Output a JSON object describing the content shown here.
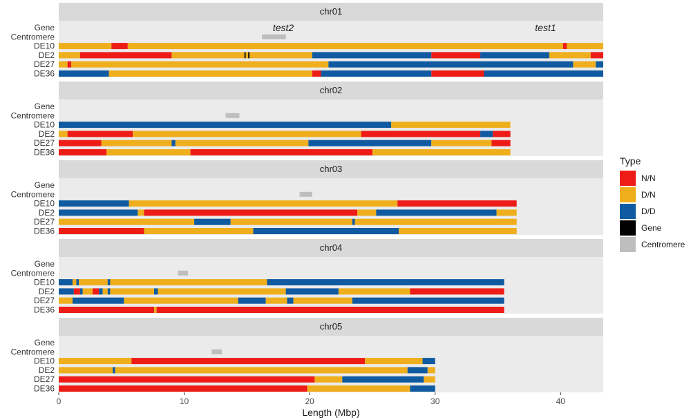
{
  "chart_data": {
    "type": "bar",
    "subtype": "horizontal-segment-tracks",
    "xlabel": "Length (Mbp)",
    "ylabel": "",
    "xlim": [
      0,
      43.4
    ],
    "xticks": [
      0,
      10,
      20,
      30,
      40
    ],
    "rows": [
      "Gene",
      "Centromere",
      "DE10",
      "DE2",
      "DE27",
      "DE36"
    ],
    "legend": {
      "title": "Type",
      "position": "right",
      "items": [
        {
          "label": "N/N",
          "color": "#ee1c17"
        },
        {
          "label": "D/N",
          "color": "#efae1c"
        },
        {
          "label": "D/D",
          "color": "#0f5aa0"
        },
        {
          "label": "Gene",
          "color": "#000000"
        },
        {
          "label": "Centromere",
          "color": "#bebebe"
        }
      ]
    },
    "type_colors": {
      "N/N": "#ee1c17",
      "D/N": "#efae1c",
      "D/D": "#0f5aa0",
      "Gene": "#000000",
      "Centromere": "#bebebe"
    },
    "panels": [
      {
        "name": "chr01",
        "length": 43.4,
        "centromere": [
          16.2,
          18.1
        ],
        "genes": [
          {
            "label": "test2",
            "pos": 17.9
          },
          {
            "label": "test1",
            "pos": 38.8
          }
        ],
        "tracks": {
          "DE10": [
            [
              0,
              4.2,
              "D/N"
            ],
            [
              4.2,
              5.5,
              "N/N"
            ],
            [
              5.5,
              40.2,
              "D/N"
            ],
            [
              40.2,
              40.5,
              "N/N"
            ],
            [
              40.5,
              43.4,
              "D/N"
            ]
          ],
          "DE2": [
            [
              0,
              1.7,
              "D/N"
            ],
            [
              1.7,
              9.0,
              "N/N"
            ],
            [
              9.0,
              14.8,
              "D/N"
            ],
            [
              14.8,
              14.9,
              "Gene"
            ],
            [
              14.9,
              15.1,
              "D/N"
            ],
            [
              15.1,
              15.2,
              "Gene"
            ],
            [
              15.2,
              20.2,
              "D/N"
            ],
            [
              20.2,
              29.7,
              "D/D"
            ],
            [
              29.7,
              33.6,
              "N/N"
            ],
            [
              33.6,
              39.1,
              "D/D"
            ],
            [
              39.1,
              42.4,
              "D/N"
            ],
            [
              42.4,
              43.4,
              "N/N"
            ]
          ],
          "DE27": [
            [
              0,
              0.7,
              "D/N"
            ],
            [
              0.7,
              1.0,
              "N/N"
            ],
            [
              1.0,
              21.5,
              "D/N"
            ],
            [
              21.5,
              41.0,
              "D/D"
            ],
            [
              41.0,
              42.8,
              "D/N"
            ],
            [
              42.8,
              43.4,
              "D/D"
            ]
          ],
          "DE36": [
            [
              0,
              4.0,
              "D/D"
            ],
            [
              4.0,
              20.2,
              "D/N"
            ],
            [
              20.2,
              20.9,
              "N/N"
            ],
            [
              20.9,
              29.7,
              "D/D"
            ],
            [
              29.7,
              33.9,
              "N/N"
            ],
            [
              33.9,
              43.4,
              "D/D"
            ]
          ]
        }
      },
      {
        "name": "chr02",
        "length": 36.0,
        "centromere": [
          13.3,
          14.4
        ],
        "genes": [],
        "tracks": {
          "DE10": [
            [
              0,
              26.5,
              "D/D"
            ],
            [
              26.5,
              36.0,
              "D/N"
            ]
          ],
          "DE2": [
            [
              0,
              0.7,
              "D/N"
            ],
            [
              0.7,
              5.9,
              "N/N"
            ],
            [
              5.9,
              24.1,
              "D/N"
            ],
            [
              24.1,
              33.6,
              "N/N"
            ],
            [
              33.6,
              34.6,
              "D/D"
            ],
            [
              34.6,
              36.0,
              "N/N"
            ]
          ],
          "DE27": [
            [
              0,
              3.4,
              "N/N"
            ],
            [
              3.4,
              9.0,
              "D/N"
            ],
            [
              9.0,
              9.3,
              "D/D"
            ],
            [
              9.3,
              19.9,
              "D/N"
            ],
            [
              19.9,
              29.7,
              "D/D"
            ],
            [
              29.7,
              34.5,
              "D/N"
            ],
            [
              34.5,
              36.0,
              "N/N"
            ]
          ],
          "DE36": [
            [
              0,
              3.8,
              "N/N"
            ],
            [
              3.8,
              10.5,
              "D/N"
            ],
            [
              10.5,
              25.0,
              "N/N"
            ],
            [
              25.0,
              36.0,
              "D/N"
            ]
          ]
        }
      },
      {
        "name": "chr03",
        "length": 36.5,
        "centromere": [
          19.2,
          20.2
        ],
        "genes": [],
        "tracks": {
          "DE10": [
            [
              0,
              5.6,
              "D/D"
            ],
            [
              5.6,
              27.0,
              "D/N"
            ],
            [
              27.0,
              36.5,
              "N/N"
            ]
          ],
          "DE2": [
            [
              0,
              6.3,
              "D/D"
            ],
            [
              6.3,
              6.8,
              "D/N"
            ],
            [
              6.8,
              23.8,
              "N/N"
            ],
            [
              23.8,
              25.3,
              "D/N"
            ],
            [
              25.3,
              34.9,
              "D/D"
            ],
            [
              34.9,
              36.5,
              "D/N"
            ]
          ],
          "DE27": [
            [
              0,
              10.8,
              "D/N"
            ],
            [
              10.8,
              13.7,
              "D/D"
            ],
            [
              13.7,
              23.4,
              "D/N"
            ],
            [
              23.4,
              23.6,
              "D/D"
            ],
            [
              23.6,
              36.5,
              "D/N"
            ]
          ],
          "DE36": [
            [
              0,
              6.8,
              "N/N"
            ],
            [
              6.8,
              15.5,
              "D/N"
            ],
            [
              15.5,
              27.1,
              "D/D"
            ],
            [
              27.1,
              36.5,
              "D/N"
            ]
          ]
        }
      },
      {
        "name": "chr04",
        "length": 35.5,
        "centromere": [
          9.5,
          10.3
        ],
        "genes": [],
        "tracks": {
          "DE10": [
            [
              0,
              1.1,
              "D/D"
            ],
            [
              1.1,
              1.4,
              "D/N"
            ],
            [
              1.4,
              1.6,
              "D/D"
            ],
            [
              1.6,
              3.9,
              "D/N"
            ],
            [
              3.9,
              4.1,
              "D/D"
            ],
            [
              4.1,
              16.6,
              "D/N"
            ],
            [
              16.6,
              35.5,
              "D/D"
            ]
          ],
          "DE2": [
            [
              0,
              1.2,
              "D/D"
            ],
            [
              1.2,
              1.7,
              "N/N"
            ],
            [
              1.7,
              1.9,
              "D/D"
            ],
            [
              1.9,
              2.7,
              "D/N"
            ],
            [
              2.7,
              3.2,
              "N/N"
            ],
            [
              3.2,
              3.5,
              "D/D"
            ],
            [
              3.5,
              3.9,
              "D/N"
            ],
            [
              3.9,
              4.1,
              "D/D"
            ],
            [
              4.1,
              7.6,
              "D/N"
            ],
            [
              7.6,
              7.9,
              "D/D"
            ],
            [
              7.9,
              18.1,
              "D/N"
            ],
            [
              18.1,
              22.3,
              "D/D"
            ],
            [
              22.3,
              28.0,
              "D/N"
            ],
            [
              28.0,
              35.5,
              "N/N"
            ]
          ],
          "DE27": [
            [
              0,
              1.1,
              "D/N"
            ],
            [
              1.1,
              5.2,
              "D/D"
            ],
            [
              5.2,
              14.3,
              "D/N"
            ],
            [
              14.3,
              16.5,
              "D/D"
            ],
            [
              16.5,
              18.2,
              "D/N"
            ],
            [
              18.2,
              18.7,
              "D/D"
            ],
            [
              18.7,
              23.4,
              "D/N"
            ],
            [
              23.4,
              35.5,
              "D/D"
            ]
          ],
          "DE36": [
            [
              0,
              7.6,
              "N/N"
            ],
            [
              7.6,
              7.8,
              "D/N"
            ],
            [
              7.8,
              35.5,
              "N/N"
            ]
          ]
        }
      },
      {
        "name": "chr05",
        "length": 30.0,
        "centromere": [
          12.2,
          13.0
        ],
        "genes": [],
        "tracks": {
          "DE10": [
            [
              0,
              5.8,
              "D/N"
            ],
            [
              5.8,
              24.4,
              "N/N"
            ],
            [
              24.4,
              29.0,
              "D/N"
            ],
            [
              29.0,
              30.0,
              "D/D"
            ]
          ],
          "DE2": [
            [
              0,
              4.3,
              "D/N"
            ],
            [
              4.3,
              4.5,
              "D/D"
            ],
            [
              4.5,
              27.8,
              "D/N"
            ],
            [
              27.8,
              29.4,
              "D/D"
            ],
            [
              29.4,
              30.0,
              "D/N"
            ]
          ],
          "DE27": [
            [
              0,
              20.4,
              "N/N"
            ],
            [
              20.4,
              22.6,
              "D/N"
            ],
            [
              22.6,
              29.1,
              "D/D"
            ],
            [
              29.1,
              30.0,
              "D/N"
            ]
          ],
          "DE36": [
            [
              0,
              19.8,
              "N/N"
            ],
            [
              19.8,
              28.0,
              "D/N"
            ],
            [
              28.0,
              30.0,
              "D/D"
            ]
          ]
        }
      }
    ]
  }
}
